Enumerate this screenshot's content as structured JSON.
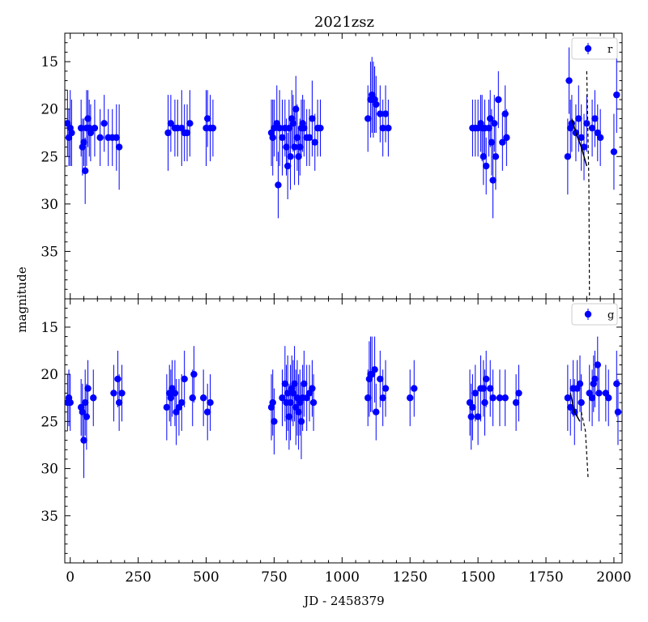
{
  "chart_data": {
    "type": "scatter",
    "title": "2021zsz",
    "xlabel": "JD - 2458379",
    "ylabel": "magnitude",
    "xlim": [
      -20,
      2030
    ],
    "ylim_inverted": [
      40,
      12
    ],
    "x_ticks": [
      0,
      250,
      500,
      750,
      1000,
      1250,
      1500,
      1750,
      2000
    ],
    "y_ticks": [
      15,
      20,
      25,
      30,
      35
    ],
    "marker_color": "#0000ff",
    "fit_line_color": "#000000",
    "panels": [
      {
        "legend": "r",
        "points": [
          [
            -10,
            21.5,
            3.5
          ],
          [
            -5,
            23,
            3
          ],
          [
            0,
            22,
            4
          ],
          [
            5,
            22.5,
            3.5
          ],
          [
            40,
            22,
            3
          ],
          [
            45,
            24,
            3
          ],
          [
            50,
            23.5,
            2.5
          ],
          [
            55,
            26.5,
            3.5
          ],
          [
            60,
            22,
            4
          ],
          [
            65,
            21,
            3
          ],
          [
            70,
            22,
            3
          ],
          [
            75,
            22.5,
            3
          ],
          [
            90,
            22,
            3
          ],
          [
            110,
            23,
            3
          ],
          [
            125,
            21.5,
            3
          ],
          [
            140,
            23,
            3
          ],
          [
            155,
            23,
            3
          ],
          [
            170,
            23,
            3.5
          ],
          [
            180,
            24,
            4.5
          ],
          [
            360,
            22.5,
            4
          ],
          [
            370,
            21.5,
            3
          ],
          [
            385,
            22,
            3
          ],
          [
            395,
            22,
            3
          ],
          [
            410,
            22,
            4
          ],
          [
            420,
            22.5,
            3
          ],
          [
            430,
            22.5,
            3
          ],
          [
            440,
            21.5,
            3.5
          ],
          [
            500,
            22,
            4
          ],
          [
            505,
            21,
            3
          ],
          [
            515,
            22,
            3.5
          ],
          [
            525,
            22,
            3
          ],
          [
            740,
            22.5,
            3.5
          ],
          [
            745,
            23,
            4
          ],
          [
            750,
            22,
            3
          ],
          [
            760,
            21.5,
            4
          ],
          [
            765,
            28,
            3.5
          ],
          [
            770,
            22,
            4
          ],
          [
            780,
            23,
            4
          ],
          [
            790,
            22,
            3
          ],
          [
            795,
            24,
            3
          ],
          [
            800,
            26,
            3.5
          ],
          [
            805,
            22,
            3
          ],
          [
            810,
            25,
            3.5
          ],
          [
            815,
            21,
            3
          ],
          [
            820,
            21.5,
            3
          ],
          [
            825,
            24,
            4
          ],
          [
            830,
            20,
            3.5
          ],
          [
            835,
            23,
            3.5
          ],
          [
            840,
            25,
            3
          ],
          [
            845,
            24,
            3
          ],
          [
            850,
            22,
            3
          ],
          [
            855,
            21.5,
            3
          ],
          [
            860,
            22,
            3
          ],
          [
            870,
            23,
            3
          ],
          [
            880,
            23,
            3
          ],
          [
            890,
            21,
            4
          ],
          [
            900,
            23.5,
            3
          ],
          [
            910,
            22,
            3
          ],
          [
            920,
            22,
            3
          ],
          [
            1095,
            21,
            3.5
          ],
          [
            1105,
            19,
            4
          ],
          [
            1110,
            18.5,
            4
          ],
          [
            1115,
            19,
            4
          ],
          [
            1120,
            19,
            3.5
          ],
          [
            1125,
            19.5,
            3
          ],
          [
            1140,
            20.5,
            3
          ],
          [
            1150,
            22,
            3
          ],
          [
            1160,
            20.5,
            3
          ],
          [
            1170,
            22,
            3
          ],
          [
            1480,
            22,
            3
          ],
          [
            1490,
            22,
            3
          ],
          [
            1500,
            22,
            3
          ],
          [
            1510,
            21.5,
            3
          ],
          [
            1515,
            22,
            3.5
          ],
          [
            1520,
            25,
            3
          ],
          [
            1525,
            22,
            3
          ],
          [
            1530,
            26,
            3
          ],
          [
            1540,
            22,
            3
          ],
          [
            1545,
            21,
            3
          ],
          [
            1550,
            23.5,
            3.5
          ],
          [
            1555,
            27.5,
            4
          ],
          [
            1560,
            21.5,
            3
          ],
          [
            1565,
            25,
            3.5
          ],
          [
            1575,
            19,
            3
          ],
          [
            1590,
            23.5,
            3
          ],
          [
            1600,
            20.5,
            3
          ],
          [
            1605,
            23,
            3
          ],
          [
            1830,
            25,
            4
          ],
          [
            1835,
            17,
            3.5
          ],
          [
            1840,
            22,
            3
          ],
          [
            1845,
            21.5,
            3
          ],
          [
            1860,
            22.5,
            3
          ],
          [
            1870,
            21,
            3.5
          ],
          [
            1880,
            23,
            3.5
          ],
          [
            1890,
            24,
            3.5
          ],
          [
            1900,
            21.5,
            3
          ],
          [
            1920,
            22,
            3
          ],
          [
            1930,
            21,
            3
          ],
          [
            1940,
            22.5,
            3
          ],
          [
            1950,
            23,
            3
          ],
          [
            2000,
            24.5,
            4
          ],
          [
            2010,
            18.5,
            4
          ]
        ],
        "fit_solid": [
          [
            1845,
            21
          ],
          [
            1860,
            22.5
          ],
          [
            1880,
            24
          ],
          [
            1900,
            26
          ]
        ],
        "fit_dashed": [
          [
            1900,
            16
          ],
          [
            1908,
            28
          ],
          [
            1910,
            40
          ]
        ]
      },
      {
        "legend": "g",
        "points": [
          [
            -10,
            23,
            3
          ],
          [
            -5,
            22.5,
            3
          ],
          [
            0,
            23,
            3
          ],
          [
            40,
            23.5,
            3
          ],
          [
            45,
            24,
            3
          ],
          [
            50,
            27,
            4
          ],
          [
            55,
            23,
            3.5
          ],
          [
            60,
            24.5,
            3.5
          ],
          [
            65,
            21.5,
            3
          ],
          [
            85,
            22.5,
            3
          ],
          [
            160,
            22,
            3
          ],
          [
            175,
            20.5,
            3
          ],
          [
            180,
            23,
            3
          ],
          [
            190,
            22,
            3
          ],
          [
            355,
            23.5,
            3.5
          ],
          [
            365,
            22,
            3
          ],
          [
            370,
            22.5,
            3
          ],
          [
            375,
            21.5,
            3
          ],
          [
            385,
            22,
            3.5
          ],
          [
            390,
            24,
            3.5
          ],
          [
            400,
            23.5,
            3
          ],
          [
            410,
            23,
            3
          ],
          [
            420,
            20.5,
            3
          ],
          [
            450,
            22.5,
            3
          ],
          [
            455,
            20,
            3
          ],
          [
            490,
            22.5,
            3
          ],
          [
            505,
            24,
            3
          ],
          [
            515,
            23,
            3
          ],
          [
            740,
            23.5,
            3.5
          ],
          [
            745,
            23,
            3.5
          ],
          [
            750,
            25,
            3.5
          ],
          [
            780,
            22.5,
            3
          ],
          [
            790,
            21,
            4
          ],
          [
            795,
            23,
            4
          ],
          [
            800,
            22,
            4
          ],
          [
            805,
            24.5,
            3.5
          ],
          [
            810,
            23,
            4
          ],
          [
            815,
            21.5,
            3.5
          ],
          [
            820,
            22,
            3.5
          ],
          [
            825,
            21,
            4
          ],
          [
            830,
            23.5,
            4
          ],
          [
            835,
            22.5,
            4
          ],
          [
            840,
            24,
            4
          ],
          [
            845,
            23,
            3.5
          ],
          [
            850,
            25,
            4
          ],
          [
            855,
            22.5,
            3.5
          ],
          [
            860,
            21,
            3.5
          ],
          [
            870,
            22.5,
            3.5
          ],
          [
            880,
            22,
            3
          ],
          [
            890,
            21.5,
            3
          ],
          [
            895,
            23,
            3
          ],
          [
            1095,
            22.5,
            3
          ],
          [
            1100,
            20.5,
            4
          ],
          [
            1105,
            20,
            4
          ],
          [
            1110,
            20,
            4
          ],
          [
            1120,
            19.5,
            3.5
          ],
          [
            1125,
            24,
            3
          ],
          [
            1140,
            20.5,
            3
          ],
          [
            1150,
            22.5,
            3
          ],
          [
            1160,
            21.5,
            3
          ],
          [
            1250,
            22.5,
            3
          ],
          [
            1265,
            21.5,
            3
          ],
          [
            1470,
            23,
            3.5
          ],
          [
            1475,
            24.5,
            3.5
          ],
          [
            1480,
            23.5,
            3.5
          ],
          [
            1490,
            22,
            3
          ],
          [
            1500,
            24.5,
            3
          ],
          [
            1510,
            21.5,
            3.5
          ],
          [
            1520,
            21.5,
            3
          ],
          [
            1525,
            23,
            3.5
          ],
          [
            1530,
            20.5,
            3
          ],
          [
            1545,
            21.5,
            3
          ],
          [
            1555,
            22.5,
            3
          ],
          [
            1580,
            22.5,
            3
          ],
          [
            1600,
            22.5,
            3
          ],
          [
            1640,
            23,
            3
          ],
          [
            1650,
            22,
            3
          ],
          [
            1830,
            22.5,
            3.5
          ],
          [
            1840,
            23.5,
            3
          ],
          [
            1850,
            21.5,
            3
          ],
          [
            1855,
            24,
            3.5
          ],
          [
            1865,
            21.5,
            3
          ],
          [
            1875,
            21,
            3
          ],
          [
            1880,
            23,
            3
          ],
          [
            1910,
            22,
            3
          ],
          [
            1920,
            22.5,
            3
          ],
          [
            1925,
            21,
            3
          ],
          [
            1930,
            20.5,
            3
          ],
          [
            1940,
            19,
            3
          ],
          [
            1945,
            22,
            3
          ],
          [
            1970,
            22,
            3
          ],
          [
            1980,
            22.5,
            3
          ],
          [
            2010,
            21,
            3.5
          ],
          [
            2015,
            24,
            3.5
          ]
        ],
        "fit_solid": [
          [
            1840,
            22
          ],
          [
            1855,
            24
          ],
          [
            1875,
            25
          ]
        ],
        "fit_dashed": [
          [
            1880,
            24
          ],
          [
            1895,
            26
          ],
          [
            1905,
            31
          ]
        ]
      }
    ]
  }
}
